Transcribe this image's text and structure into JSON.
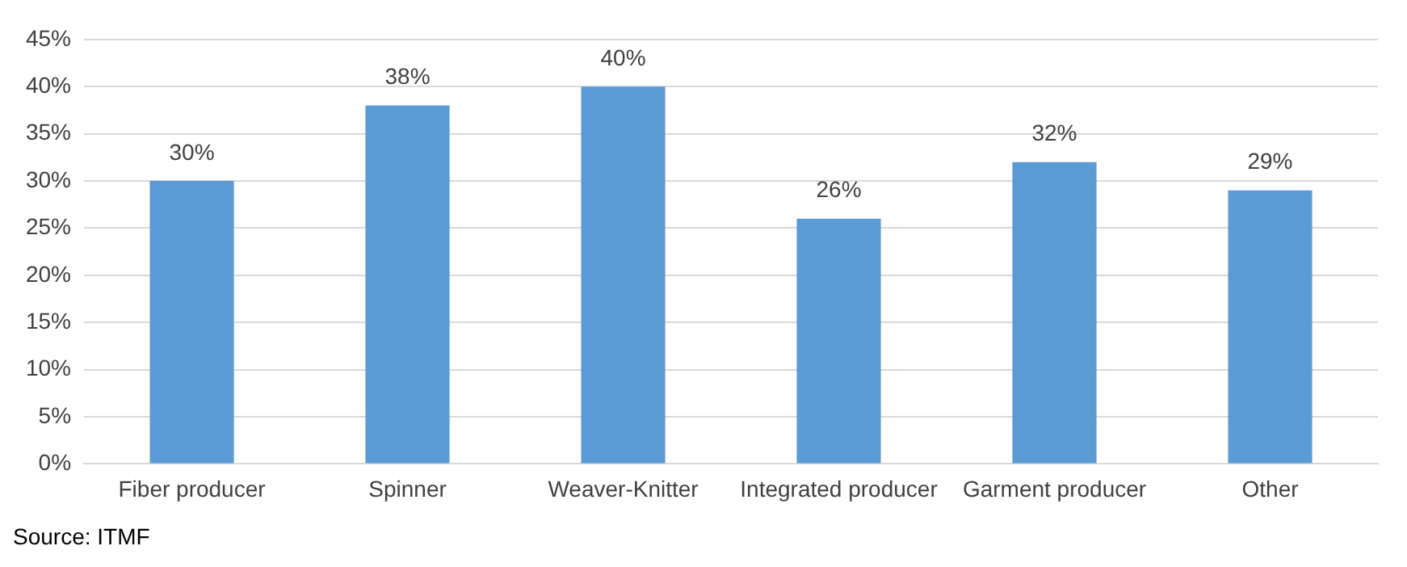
{
  "chart_data": {
    "type": "bar",
    "categories": [
      "Fiber producer",
      "Spinner",
      "Weaver-Knitter",
      "Integrated producer",
      "Garment producer",
      "Other"
    ],
    "values": [
      30,
      38,
      40,
      26,
      32,
      29
    ],
    "value_labels": [
      "30%",
      "38%",
      "40%",
      "26%",
      "32%",
      "29%"
    ],
    "color": "#5b9bd5",
    "ylim": [
      0,
      45
    ],
    "yticks": [
      {
        "value": 0,
        "label": "0%"
      },
      {
        "value": 5,
        "label": "5%"
      },
      {
        "value": 10,
        "label": "10%"
      },
      {
        "value": 15,
        "label": "15%"
      },
      {
        "value": 20,
        "label": "20%"
      },
      {
        "value": 25,
        "label": "25%"
      },
      {
        "value": 30,
        "label": "30%"
      },
      {
        "value": 35,
        "label": "35%"
      },
      {
        "value": 40,
        "label": "40%"
      },
      {
        "value": 45,
        "label": "45%"
      }
    ],
    "grid": "y",
    "legend": false,
    "annotations": [
      "Source: ITMF"
    ]
  }
}
